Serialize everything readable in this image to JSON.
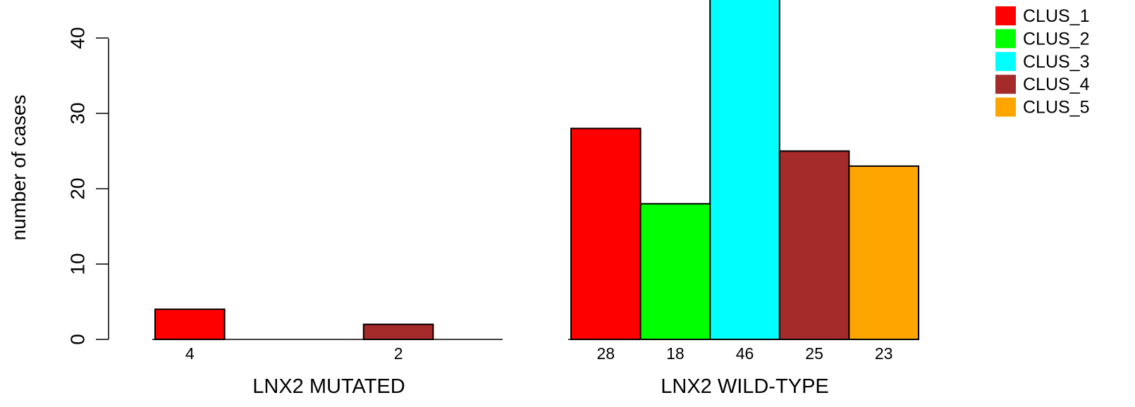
{
  "chart_data": {
    "type": "bar",
    "ylabel": "number of cases",
    "ylim": [
      0,
      46
    ],
    "y_ticks": [
      0,
      10,
      20,
      30,
      40
    ],
    "y_tick_labels": [
      "0",
      "10",
      "20",
      "30",
      "40"
    ],
    "series_names": [
      "CLUS_1",
      "CLUS_2",
      "CLUS_3",
      "CLUS_4",
      "CLUS_5"
    ],
    "colors": [
      "#ff0000",
      "#00ff00",
      "#00ffff",
      "#a52a2a",
      "#ffa500"
    ],
    "groups": [
      {
        "label": "LNX2 MUTATED",
        "values": [
          4,
          0,
          0,
          2,
          0
        ],
        "value_labels": [
          "4",
          "",
          "",
          "2",
          ""
        ]
      },
      {
        "label": "LNX2 WILD-TYPE",
        "values": [
          28,
          18,
          46,
          25,
          23
        ],
        "value_labels": [
          "28",
          "18",
          "46",
          "25",
          "23"
        ]
      }
    ],
    "legend": {
      "position": "top-right",
      "entries": [
        "CLUS_1",
        "CLUS_2",
        "CLUS_3",
        "CLUS_4",
        "CLUS_5"
      ]
    },
    "grid": false
  }
}
